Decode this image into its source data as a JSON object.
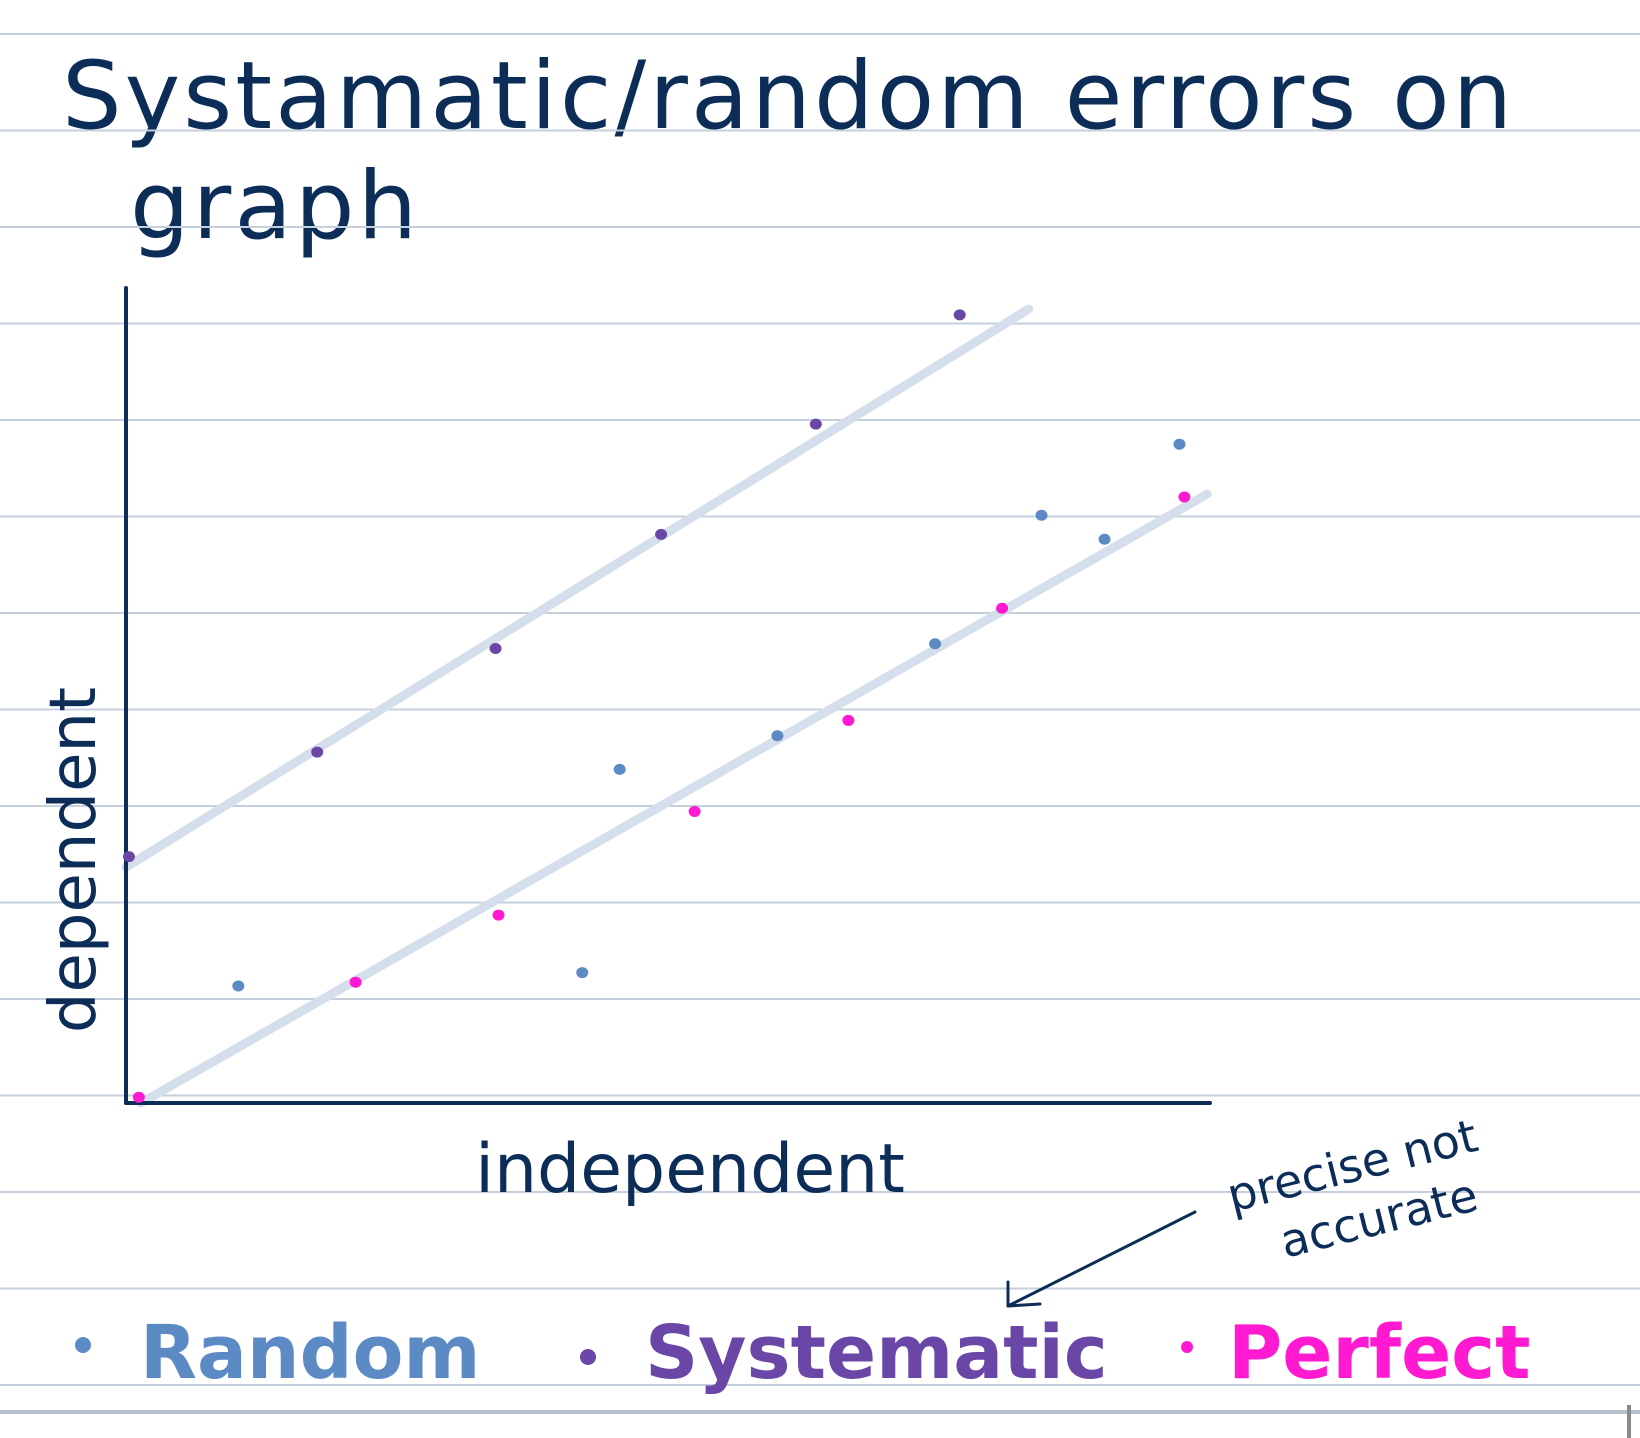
{
  "title_lines": [
    "Systamatic/random errors on",
    "graph"
  ],
  "chart_data": {
    "type": "scatter",
    "xlabel": "independent",
    "ylabel": "dependent",
    "xlim": [
      0,
      110
    ],
    "ylim": [
      0,
      85
    ],
    "grid": false,
    "legend": "bottom",
    "series": [
      {
        "name": "Random",
        "color": "#5b8ac4",
        "points": [
          [
            11.4,
            12.2
          ],
          [
            46.3,
            13.6
          ],
          [
            50.1,
            34.8
          ],
          [
            66.1,
            38.3
          ],
          [
            82.1,
            47.9
          ],
          [
            92.9,
            61.3
          ],
          [
            106.9,
            68.7
          ],
          [
            99.3,
            58.8
          ]
        ]
      },
      {
        "name": "Systematic",
        "color": "#6a46a6",
        "points": [
          [
            0.3,
            25.7
          ],
          [
            19.4,
            36.6
          ],
          [
            37.5,
            47.4
          ],
          [
            54.3,
            59.3
          ],
          [
            70.0,
            70.8
          ],
          [
            84.6,
            82.2
          ]
        ]
      },
      {
        "name": "Perfect",
        "color": "#ff1ad1",
        "points": [
          [
            1.3,
            0.6
          ],
          [
            23.3,
            12.6
          ],
          [
            37.8,
            19.6
          ],
          [
            57.7,
            30.4
          ],
          [
            73.3,
            39.9
          ],
          [
            88.9,
            51.6
          ],
          [
            107.4,
            63.2
          ]
        ]
      }
    ],
    "lines": [
      {
        "series": "Systematic",
        "x": [
          0,
          91.6
        ],
        "y": [
          24.6,
          82.8
        ],
        "color": "#d5dfec"
      },
      {
        "series": "Perfect",
        "x": [
          1.5,
          109.7
        ],
        "y": [
          0,
          63.5
        ],
        "color": "#d5dfec"
      }
    ],
    "annotation": {
      "text_lines": [
        "precise not",
        "accurate"
      ],
      "points_to": "Systematic"
    }
  },
  "colors": {
    "ink": "#0c2d57",
    "rule": "#c6d0dc",
    "fit_line": "#d5dfec"
  }
}
